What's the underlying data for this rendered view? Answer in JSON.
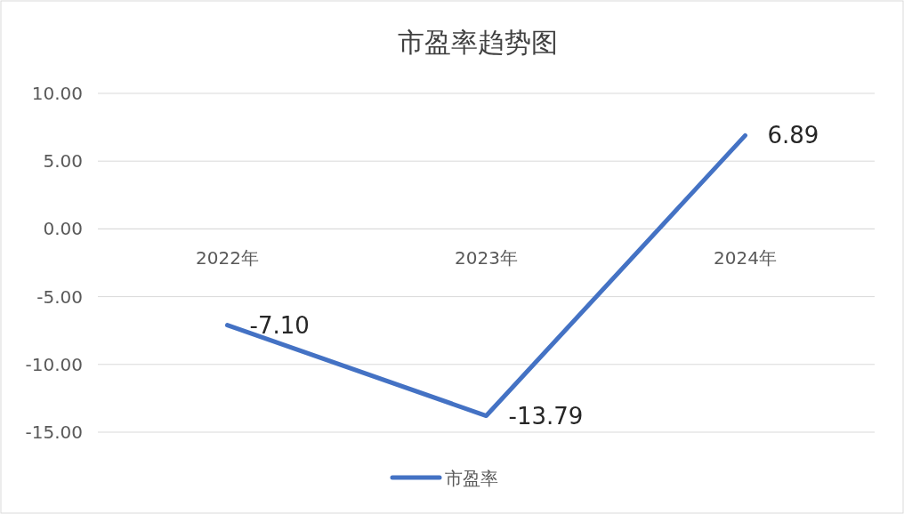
{
  "chart_data": {
    "type": "line",
    "title": "市盈率趋势图",
    "categories": [
      "2022年",
      "2023年",
      "2024年"
    ],
    "series": [
      {
        "name": "市盈率",
        "color": "#4472c4",
        "values": [
          -7.1,
          -13.79,
          6.89
        ],
        "value_labels": [
          "-7.10",
          "-13.79",
          "6.89"
        ]
      }
    ],
    "ylim": [
      -15,
      10
    ],
    "yticks": [
      {
        "value": -15,
        "label": "-15.00"
      },
      {
        "value": -10,
        "label": "-10.00"
      },
      {
        "value": -5,
        "label": "-5.00"
      },
      {
        "value": 0,
        "label": "0.00"
      },
      {
        "value": 5,
        "label": "5.00"
      },
      {
        "value": 10,
        "label": "10.00"
      }
    ],
    "grid": "y",
    "legend": "bottom",
    "marker": "none",
    "line_style": "solid"
  }
}
